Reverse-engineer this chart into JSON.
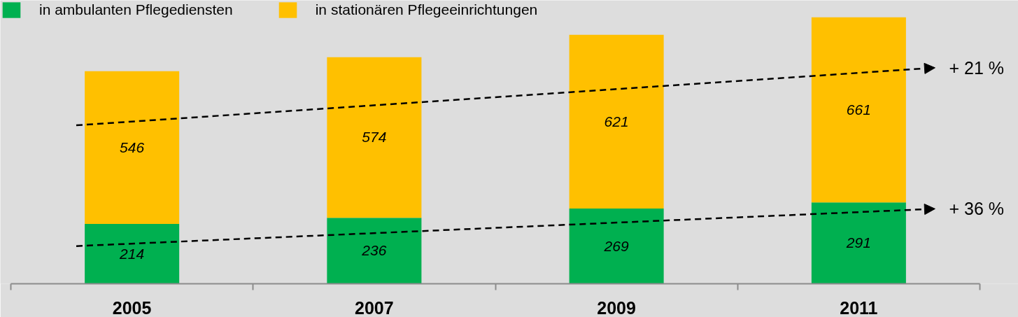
{
  "chart_data": {
    "type": "bar",
    "stacked": true,
    "categories": [
      "2005",
      "2007",
      "2009",
      "2011"
    ],
    "series": [
      {
        "name": "in ambulanten Pflegediensten",
        "color": "#00b050",
        "values": [
          214,
          236,
          269,
          291
        ]
      },
      {
        "name": "in stationären Pflegeeinrichtungen",
        "color": "#ffc000",
        "values": [
          546,
          574,
          621,
          661
        ]
      }
    ],
    "data_labels": true,
    "legend": "top left",
    "annotations": [
      "+ 21 %",
      "+ 36 %"
    ]
  }
}
